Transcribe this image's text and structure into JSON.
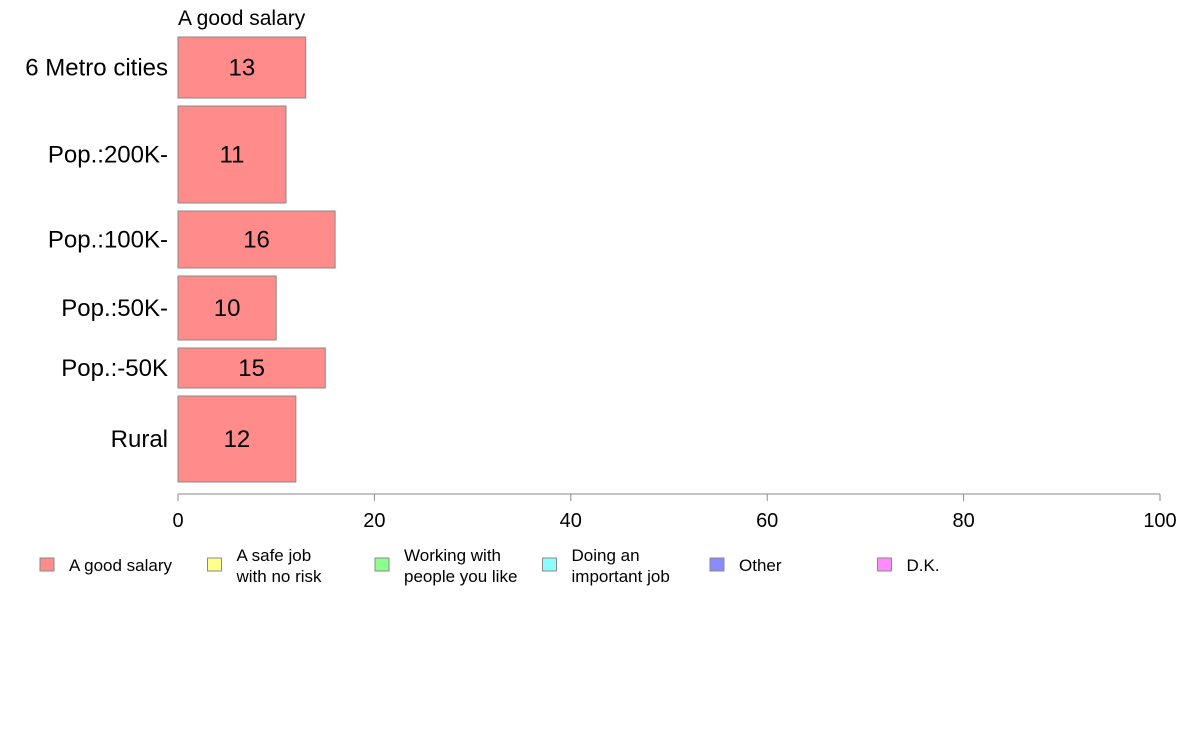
{
  "chart_data": {
    "type": "bar",
    "orientation": "horizontal",
    "title": "A good salary",
    "categories": [
      "6 Metro cities",
      "Pop.:200K-",
      "Pop.:100K-",
      "Pop.:50K-",
      "Pop.:-50K",
      "Rural"
    ],
    "series": [
      {
        "name": "A good salary",
        "values": [
          13,
          11,
          16,
          10,
          15,
          12
        ],
        "color": "#ff8b8b"
      }
    ],
    "xlim": [
      0,
      100
    ],
    "xticks": [
      0,
      20,
      40,
      60,
      80,
      100
    ],
    "grid": false,
    "legend_position": "bottom",
    "legend": [
      {
        "lines": [
          "A good salary"
        ],
        "color": "#ff8b8b"
      },
      {
        "lines": [
          "A safe job",
          "with no risk"
        ],
        "color": "#ffff8b"
      },
      {
        "lines": [
          "Working with",
          "people you like"
        ],
        "color": "#8bff8b"
      },
      {
        "lines": [
          "Doing an",
          "important job"
        ],
        "color": "#8bffff"
      },
      {
        "lines": [
          "Other"
        ],
        "color": "#8b8bff"
      },
      {
        "lines": [
          "D.K."
        ],
        "color": "#ff8bff"
      }
    ]
  }
}
